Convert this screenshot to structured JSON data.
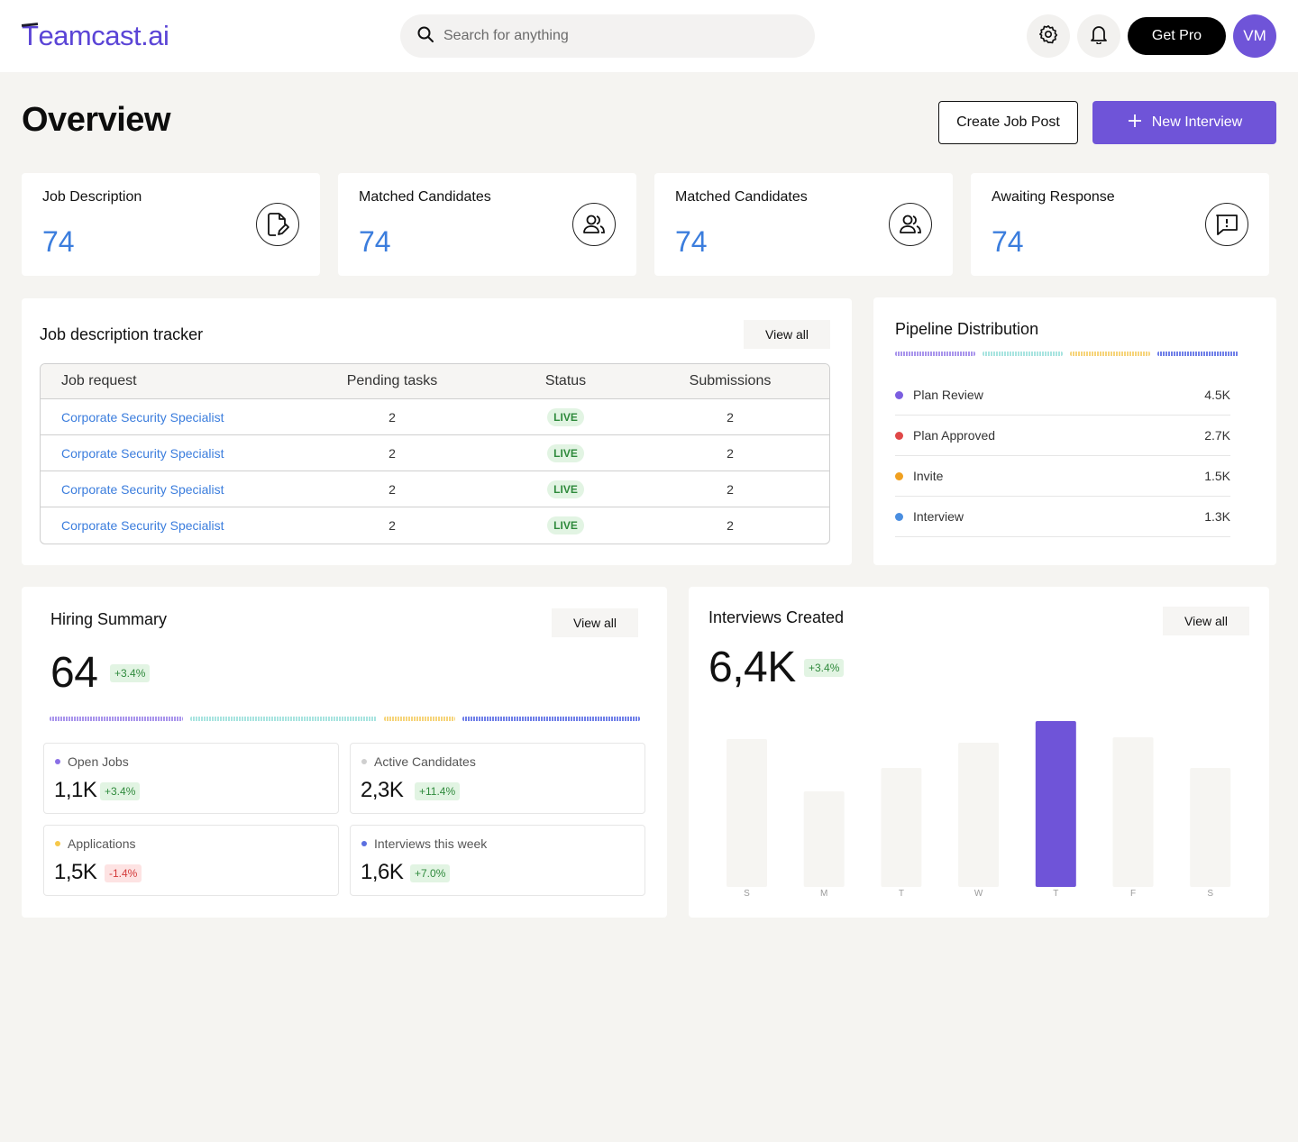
{
  "brand": {
    "name_first": "T",
    "name_rest": "eamcast.ai"
  },
  "search": {
    "placeholder": "Search for anything"
  },
  "header": {
    "get_pro": "Get Pro",
    "avatar_initials": "VM"
  },
  "page": {
    "title": "Overview",
    "create_job_post": "Create Job Post",
    "new_interview": "New Interview"
  },
  "stats": [
    {
      "label": "Job Description",
      "value": "74",
      "icon": "document-edit-icon"
    },
    {
      "label": "Matched Candidates",
      "value": "74",
      "icon": "users-icon"
    },
    {
      "label": "Matched Candidates",
      "value": "74",
      "icon": "users-icon"
    },
    {
      "label": "Awaiting Response",
      "value": "74",
      "icon": "message-alert-icon"
    }
  ],
  "tracker": {
    "title": "Job description tracker",
    "view_all": "View all",
    "columns": [
      "Job request",
      "Pending tasks",
      "Status",
      "Submissions"
    ],
    "rows": [
      {
        "job": "Corporate Security Specialist",
        "pending": "2",
        "status": "LIVE",
        "submissions": "2"
      },
      {
        "job": "Corporate Security Specialist",
        "pending": "2",
        "status": "LIVE",
        "submissions": "2"
      },
      {
        "job": "Corporate Security Specialist",
        "pending": "2",
        "status": "LIVE",
        "submissions": "2"
      },
      {
        "job": "Corporate Security Specialist",
        "pending": "2",
        "status": "LIVE",
        "submissions": "2"
      }
    ]
  },
  "pipeline": {
    "title": "Pipeline Distribution",
    "items": [
      {
        "label": "Plan Review",
        "value": "4.5K",
        "color": "#7b5ee0"
      },
      {
        "label": "Plan Approved",
        "value": "2.7K",
        "color": "#e04848"
      },
      {
        "label": "Invite",
        "value": "1.5K",
        "color": "#f0a020"
      },
      {
        "label": "Interview",
        "value": "1.3K",
        "color": "#4a8ee0"
      }
    ],
    "bar_colors": [
      "#a894ec",
      "#a8e4e0",
      "#f6d47a",
      "#6f7fe8"
    ]
  },
  "hiring": {
    "title": "Hiring Summary",
    "view_all": "View all",
    "total": "64",
    "change": "+3.4%",
    "bar_colors": [
      "#a894ec",
      "#a8e4e0",
      "#f6d47a",
      "#6f7fe8"
    ],
    "metrics": [
      {
        "label": "Open Jobs",
        "value": "1,1K",
        "change": "+3.4%",
        "trend": "up",
        "dot": "#8a6fe6"
      },
      {
        "label": "Active Candidates",
        "value": "2,3K",
        "change": "+11.4%",
        "trend": "up",
        "dot": "#cfcfcf"
      },
      {
        "label": "Applications",
        "value": "1,5K",
        "change": "-1.4%",
        "trend": "down",
        "dot": "#f6c84a"
      },
      {
        "label": "Interviews this week",
        "value": "1,6K",
        "change": "+7.0%",
        "trend": "up",
        "dot": "#5b6fe0"
      }
    ]
  },
  "interviews": {
    "title": "Interviews Created",
    "view_all": "View all",
    "total": "6,4K",
    "change": "+3.4%"
  },
  "chart_data": {
    "type": "bar",
    "categories": [
      "S",
      "M",
      "T",
      "W",
      "T",
      "F",
      "S"
    ],
    "values": [
      82,
      53,
      66,
      80,
      92,
      83,
      66
    ],
    "highlight_index": 4,
    "highlight_color": "#6f54d8",
    "bar_color": "#f6f5f2",
    "ylim": [
      0,
      100
    ],
    "title": "",
    "xlabel": "",
    "ylabel": ""
  }
}
